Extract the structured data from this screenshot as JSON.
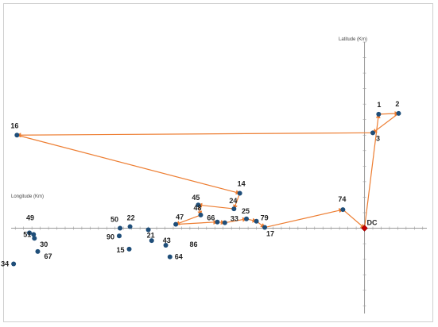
{
  "chart_data": {
    "type": "scatter",
    "xlabel": "Longitude (Km)",
    "ylabel": "Latitude (Km)",
    "xlim": [
      -425,
      75
    ],
    "ylim": [
      -110,
      240
    ],
    "grid": false,
    "connected_route": true,
    "colors": {
      "route": "#ed7d31",
      "point": "#1f4e79",
      "depot": "#c00000",
      "axis": "#9a9a9a"
    },
    "depot": {
      "label": "DC",
      "x": 0,
      "y": 0
    },
    "points": [
      {
        "label": "1",
        "x": 17,
        "y": 147
      },
      {
        "label": "2",
        "x": 41,
        "y": 148
      },
      {
        "label": "3",
        "x": 10,
        "y": 123
      },
      {
        "label": "16",
        "x": -418,
        "y": 120
      },
      {
        "label": "14",
        "x": -150,
        "y": 45
      },
      {
        "label": "45",
        "x": -200,
        "y": 30
      },
      {
        "label": "24",
        "x": -157,
        "y": 25
      },
      {
        "label": "48",
        "x": -197,
        "y": 17
      },
      {
        "label": "47",
        "x": -227,
        "y": 5
      },
      {
        "label": "66",
        "x": -177,
        "y": 8
      },
      {
        "label": "33",
        "x": -168,
        "y": 7
      },
      {
        "label": "25",
        "x": -142,
        "y": 12
      },
      {
        "label": "79",
        "x": -130,
        "y": 9
      },
      {
        "label": "17",
        "x": -120,
        "y": 1
      },
      {
        "label": "74",
        "x": -26,
        "y": 24
      },
      {
        "label": "50",
        "x": -294,
        "y": 0
      },
      {
        "label": "22",
        "x": -282,
        "y": 2
      },
      {
        "label": "21",
        "x": -260,
        "y": -2
      },
      {
        "label": "43",
        "x": -256,
        "y": -16
      },
      {
        "label": "90",
        "x": -295,
        "y": -10
      },
      {
        "label": "86",
        "x": -239,
        "y": -22
      },
      {
        "label": "15",
        "x": -283,
        "y": -27
      },
      {
        "label": "64",
        "x": -234,
        "y": -37
      },
      {
        "label": "49",
        "x": -403,
        "y": -6
      },
      {
        "label": "51",
        "x": -398,
        "y": -8
      },
      {
        "label": "30",
        "x": -397,
        "y": -13
      },
      {
        "label": "67",
        "x": -393,
        "y": -30
      },
      {
        "label": "34",
        "x": -422,
        "y": -46
      }
    ],
    "route": [
      "DC",
      "1",
      "2",
      "3",
      "16",
      "14",
      "24",
      "45",
      "48",
      "47",
      "66",
      "33",
      "25",
      "79",
      "17",
      "74",
      "DC"
    ]
  }
}
